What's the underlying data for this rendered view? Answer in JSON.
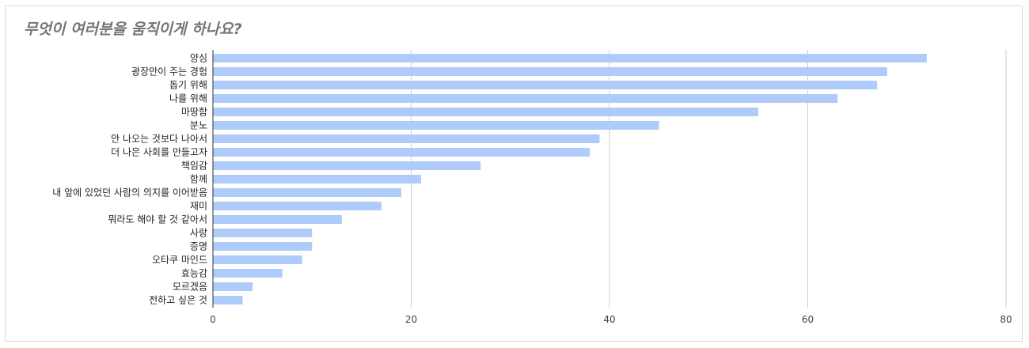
{
  "chart_data": {
    "type": "bar",
    "orientation": "horizontal",
    "title": "무엇이 여러분을 움직이게 하나요?",
    "xlabel": "",
    "ylabel": "",
    "xlim": [
      0,
      80
    ],
    "xticks": [
      0,
      20,
      40,
      60,
      80
    ],
    "grid": true,
    "legend": "none",
    "bar_color": "#aecbfa",
    "categories": [
      "양심",
      "광장만이 주는 경험",
      "돕기 위해",
      "나를 위해",
      "마땅함",
      "분노",
      "안 나오는 것보다 나아서",
      "더 나은 사회를 만들고자",
      "책임감",
      "함께",
      "내 앞에 있었던 사람의 의지를 이어받음",
      "재미",
      "뭐라도 해야 할 것 같아서",
      "사랑",
      "증명",
      "오타쿠 마인드",
      "효능감",
      "모르겠음",
      "전하고 싶은 것"
    ],
    "values": [
      72,
      68,
      67,
      63,
      55,
      45,
      39,
      38,
      27,
      21,
      19,
      17,
      13,
      10,
      10,
      9,
      7,
      4,
      3
    ]
  }
}
